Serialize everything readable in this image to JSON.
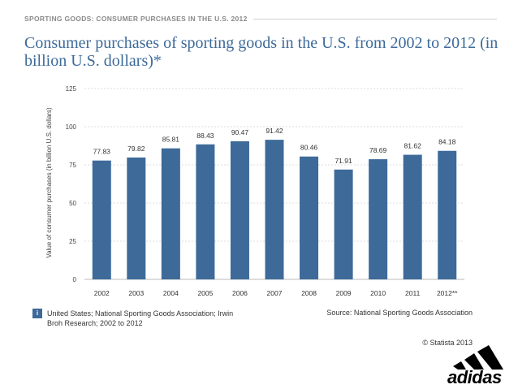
{
  "header": {
    "label": "SPORTING GOODS: CONSUMER PURCHASES IN THE U.S. 2012"
  },
  "chart_data": {
    "type": "bar",
    "title": "Consumer purchases of sporting goods in the U.S. from 2002 to 2012 (in billion U.S. dollars)*",
    "xlabel": "",
    "ylabel": "Value of consumer purchases (in billion U.S. dollars)",
    "categories": [
      "2002",
      "2003",
      "2004",
      "2005",
      "2006",
      "2007",
      "2008",
      "2009",
      "2010",
      "2011",
      "2012**"
    ],
    "values": [
      77.83,
      79.82,
      85.81,
      88.43,
      90.47,
      91.42,
      80.46,
      71.91,
      78.69,
      81.62,
      84.18
    ],
    "value_labels": [
      "77.83",
      "79.82",
      "85.81",
      "88.43",
      "90.47",
      "91.42",
      "80.46",
      "71.91",
      "78.69",
      "81.62",
      "84.18"
    ],
    "ylim": [
      0,
      125
    ],
    "yticks": [
      "0",
      "25",
      "50",
      "75",
      "100",
      "125"
    ],
    "ytick_values": [
      0,
      25,
      50,
      75,
      100,
      125
    ],
    "grid": true,
    "bar_color": "#3d6a99"
  },
  "footer": {
    "legend_icon": "i",
    "legend_text": "United States; National Sporting Goods Association; Irwin Broh Research; 2002 to 2012",
    "source": "Source: National Sporting Goods Association",
    "copyright": "© Statista 2013"
  },
  "logo": {
    "text": "adidas",
    "icon": "adidas-three-stripes-icon"
  }
}
